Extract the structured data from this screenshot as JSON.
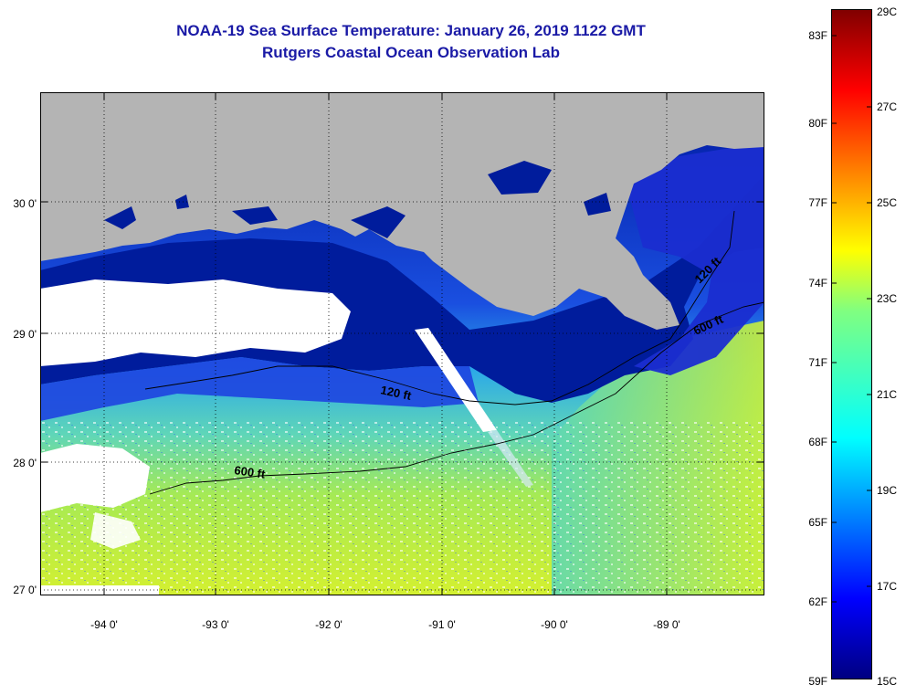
{
  "title": {
    "line1": "NOAA-19 Sea Surface Temperature:  January 26, 2019 1122 GMT",
    "line2": "Rutgers Coastal Ocean Observation Lab"
  },
  "axes": {
    "lat_labels": [
      "30 0'",
      "29 0'",
      "28 0'",
      "27 0'"
    ],
    "lon_labels": [
      "-94 0'",
      "-93 0'",
      "-92 0'",
      "-91 0'",
      "-90 0'",
      "-89 0'"
    ]
  },
  "contours": {
    "label_120_shelf": "120 ft",
    "label_600_shelf": "600 ft",
    "label_120_east": "120 ft",
    "label_600_east": "600 ft"
  },
  "colorbar": {
    "fahrenheit": [
      "83F",
      "80F",
      "77F",
      "74F",
      "71F",
      "68F",
      "65F",
      "62F",
      "59F"
    ],
    "celsius": [
      "29C",
      "27C",
      "25C",
      "23C",
      "21C",
      "19C",
      "17C",
      "15C"
    ]
  },
  "colors": {
    "title": "#1a1aa6",
    "land": "#b4b4b4",
    "cloud": "#ffffff",
    "cold_water": "#001c9c",
    "warm_water": "#b8ee3a"
  }
}
